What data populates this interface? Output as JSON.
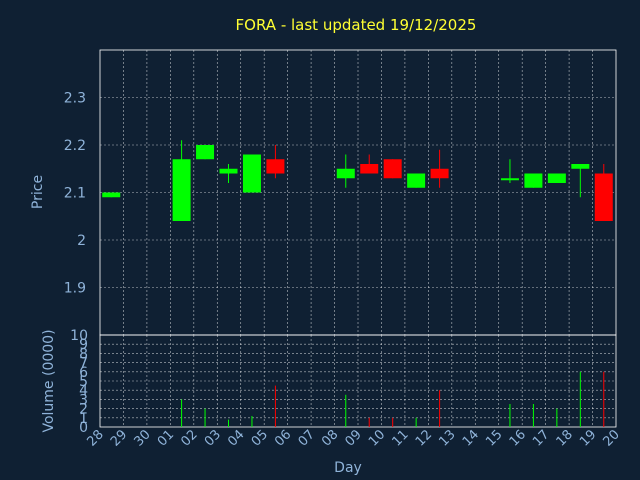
{
  "chart_data": {
    "type": "candlestick",
    "title": "FORA - last updated 19/12/2025",
    "xlabel": "Day",
    "ylabel_price": "Price",
    "ylabel_volume": "Volume (0000)",
    "price_ylim": [
      1.8,
      2.4
    ],
    "price_ticks": [
      "1.9",
      "2",
      "2.1",
      "2.2",
      "2.3"
    ],
    "price_tick_values": [
      1.9,
      2.0,
      2.1,
      2.2,
      2.3
    ],
    "volume_ylim": [
      0,
      10
    ],
    "volume_ticks": [
      "0",
      "1",
      "2",
      "3",
      "4",
      "5",
      "6",
      "7",
      "8",
      "9",
      "10"
    ],
    "x_labels": [
      "28",
      "29",
      "30",
      "01",
      "02",
      "03",
      "04",
      "05",
      "06",
      "07",
      "08",
      "09",
      "10",
      "11",
      "12",
      "13",
      "14",
      "15",
      "16",
      "17",
      "18",
      "19",
      "20"
    ],
    "grid": true,
    "colors": {
      "up": "#00ff00",
      "down": "#ff0000",
      "grid": "#ffffff",
      "axis": "#8fb3d9",
      "title": "#ffff33",
      "background": "#0f2033"
    },
    "candles": [
      {
        "x": 0,
        "open": 2.09,
        "high": 2.1,
        "low": 2.09,
        "close": 2.1,
        "volume": 0
      },
      {
        "x": 3,
        "open": 2.04,
        "high": 2.21,
        "low": 2.04,
        "close": 2.17,
        "volume": 3.0
      },
      {
        "x": 4,
        "open": 2.17,
        "high": 2.2,
        "low": 2.17,
        "close": 2.2,
        "volume": 2.0
      },
      {
        "x": 5,
        "open": 2.14,
        "high": 2.16,
        "low": 2.12,
        "close": 2.15,
        "volume": 0.8
      },
      {
        "x": 6,
        "open": 2.1,
        "high": 2.18,
        "low": 2.1,
        "close": 2.18,
        "volume": 1.2
      },
      {
        "x": 7,
        "open": 2.17,
        "high": 2.2,
        "low": 2.13,
        "close": 2.14,
        "volume": 4.5
      },
      {
        "x": 10,
        "open": 2.13,
        "high": 2.18,
        "low": 2.11,
        "close": 2.15,
        "volume": 3.5
      },
      {
        "x": 11,
        "open": 2.16,
        "high": 2.18,
        "low": 2.14,
        "close": 2.14,
        "volume": 1.0
      },
      {
        "x": 12,
        "open": 2.17,
        "high": 2.17,
        "low": 2.13,
        "close": 2.13,
        "volume": 1.0
      },
      {
        "x": 13,
        "open": 2.11,
        "high": 2.14,
        "low": 2.11,
        "close": 2.14,
        "volume": 1.0
      },
      {
        "x": 14,
        "open": 2.15,
        "high": 2.19,
        "low": 2.11,
        "close": 2.13,
        "volume": 4.0
      },
      {
        "x": 17,
        "open": 2.13,
        "high": 2.17,
        "low": 2.12,
        "close": 2.13,
        "volume": 2.5
      },
      {
        "x": 18,
        "open": 2.11,
        "high": 2.14,
        "low": 2.11,
        "close": 2.14,
        "volume": 2.5
      },
      {
        "x": 19,
        "open": 2.12,
        "high": 2.14,
        "low": 2.12,
        "close": 2.14,
        "volume": 2.0
      },
      {
        "x": 20,
        "open": 2.15,
        "high": 2.16,
        "low": 2.09,
        "close": 2.16,
        "volume": 6.0
      },
      {
        "x": 21,
        "open": 2.14,
        "high": 2.16,
        "low": 2.04,
        "close": 2.04,
        "volume": 6.0
      }
    ]
  }
}
